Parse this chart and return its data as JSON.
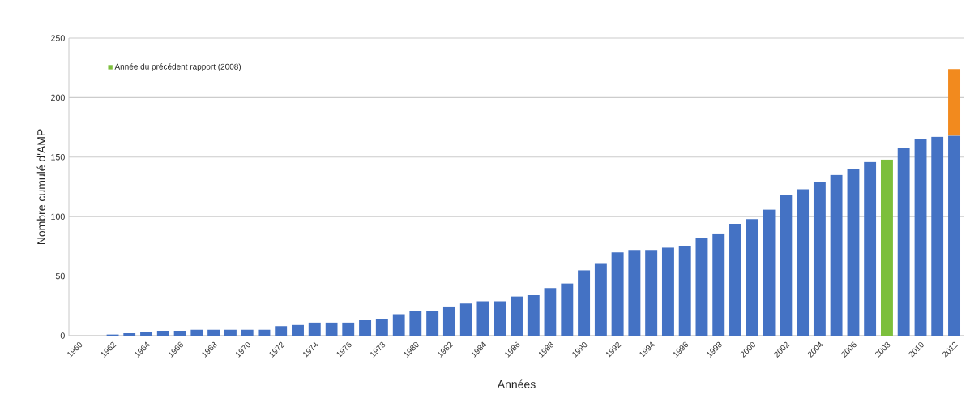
{
  "chart_data": {
    "type": "bar",
    "stacked": true,
    "xlabel": "Années",
    "ylabel": "Nombre cumulé d'AMP",
    "categories": [
      "1960",
      null,
      "1962",
      null,
      "1964",
      null,
      "1966",
      null,
      "1968",
      null,
      "1970",
      null,
      "1972",
      null,
      "1974",
      null,
      "1976",
      null,
      "1978",
      null,
      "1980",
      null,
      "1982",
      null,
      "1984",
      null,
      "1986",
      null,
      "1988",
      null,
      "1990",
      null,
      "1992",
      null,
      "1994",
      null,
      "1996",
      null,
      "1998",
      null,
      "2000",
      null,
      "2002",
      null,
      "2004",
      null,
      "2006",
      null,
      "2008",
      null,
      "2010",
      null,
      "2012"
    ],
    "series": [
      {
        "color": "#4472c4",
        "values": [
          0,
          0,
          1,
          2,
          3,
          4,
          4,
          5,
          5,
          5,
          5,
          5,
          8,
          9,
          11,
          11,
          11,
          13,
          14,
          18,
          21,
          21,
          24,
          27,
          29,
          29,
          33,
          34,
          40,
          44,
          55,
          61,
          70,
          72,
          72,
          74,
          75,
          82,
          86,
          94,
          98,
          106,
          118,
          123,
          129,
          135,
          140,
          146,
          null,
          158,
          165,
          167,
          168
        ]
      },
      {
        "name": "Année du précédent rapport (2008)",
        "color": "#7cbf3c",
        "values": [
          null,
          null,
          null,
          null,
          null,
          null,
          null,
          null,
          null,
          null,
          null,
          null,
          null,
          null,
          null,
          null,
          null,
          null,
          null,
          null,
          null,
          null,
          null,
          null,
          null,
          null,
          null,
          null,
          null,
          null,
          null,
          null,
          null,
          null,
          null,
          null,
          null,
          null,
          null,
          null,
          null,
          null,
          null,
          null,
          null,
          null,
          null,
          null,
          148,
          null,
          null,
          null,
          null
        ]
      },
      {
        "color": "#f28a1e",
        "values": [
          null,
          null,
          null,
          null,
          null,
          null,
          null,
          null,
          null,
          null,
          null,
          null,
          null,
          null,
          null,
          null,
          null,
          null,
          null,
          null,
          null,
          null,
          null,
          null,
          null,
          null,
          null,
          null,
          null,
          null,
          null,
          null,
          null,
          null,
          null,
          null,
          null,
          null,
          null,
          null,
          null,
          null,
          null,
          null,
          null,
          null,
          null,
          null,
          null,
          null,
          null,
          null,
          56
        ]
      }
    ],
    "ylim": [
      0,
      250
    ],
    "yticks": [
      0,
      50,
      100,
      150,
      200,
      250
    ],
    "grid": "y",
    "legend": "top left"
  }
}
